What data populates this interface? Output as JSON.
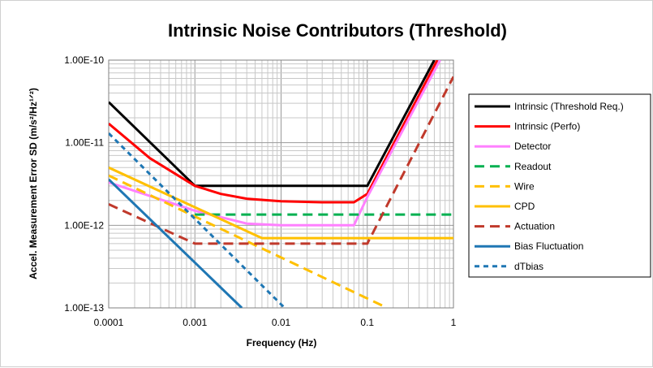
{
  "chart_data": {
    "type": "line",
    "title": "Intrinsic Noise Contributors (Threshold)",
    "xlabel": "Frequency (Hz)",
    "ylabel": "Accel. Measurement Error SD (m/s²/Hz¹ᐟ²)",
    "x_scale": "log",
    "y_scale": "log",
    "xlim": [
      0.0001,
      1
    ],
    "ylim": [
      1e-13,
      1e-10
    ],
    "x_tick_labels": [
      "0.0001",
      "0.001",
      "0.01",
      "0.1",
      "1"
    ],
    "y_tick_labels": [
      "1.00E-10",
      "1.00E-11",
      "1.00E-12",
      "1.00E-13"
    ],
    "grid": true,
    "legend_position": "right",
    "series": [
      {
        "name": "Intrinsic (Threshold Req.)",
        "color": "#000000",
        "dash": "solid",
        "x": [
          0.0001,
          0.001,
          0.01,
          0.1,
          0.6
        ],
        "y": [
          3.1e-11,
          3e-12,
          3e-12,
          3e-12,
          1e-10
        ]
      },
      {
        "name": "Intrinsic (Perfo)",
        "color": "#ff0000",
        "dash": "solid",
        "x": [
          0.0001,
          0.0003,
          0.001,
          0.002,
          0.004,
          0.01,
          0.03,
          0.07,
          0.1,
          0.65
        ],
        "y": [
          1.7e-11,
          6.5e-12,
          3e-12,
          2.4e-12,
          2.1e-12,
          1.95e-12,
          1.9e-12,
          1.9e-12,
          2.4e-12,
          1e-10
        ]
      },
      {
        "name": "Detector",
        "color": "#ff80ff",
        "dash": "solid",
        "x": [
          0.0001,
          0.001,
          0.004,
          0.01,
          0.07,
          0.1,
          0.7
        ],
        "y": [
          3.3e-12,
          1.5e-12,
          1.05e-12,
          1e-12,
          1e-12,
          2.2e-12,
          1e-10
        ]
      },
      {
        "name": "Readout",
        "color": "#00b050",
        "dash": "dashed",
        "x": [
          0.001,
          1
        ],
        "y": [
          1.35e-12,
          1.35e-12
        ]
      },
      {
        "name": "Wire",
        "color": "#ffc000",
        "dash": "dashed",
        "x": [
          0.0001,
          0.17
        ],
        "y": [
          4e-12,
          1e-13
        ]
      },
      {
        "name": "CPD",
        "color": "#ffc000",
        "dash": "solid",
        "x": [
          0.0001,
          0.006,
          1
        ],
        "y": [
          5e-12,
          7e-13,
          7e-13
        ]
      },
      {
        "name": "Actuation",
        "color": "#c0392b",
        "dash": "dashed",
        "x": [
          0.0001,
          0.001,
          0.1,
          1
        ],
        "y": [
          1.8e-12,
          6e-13,
          6e-13,
          6.3e-11
        ]
      },
      {
        "name": "Bias Fluctuation",
        "color": "#1f77b4",
        "dash": "solid",
        "x": [
          0.0001,
          0.0035
        ],
        "y": [
          3.6e-12,
          1e-13
        ]
      },
      {
        "name": "dTbias",
        "color": "#1f77b4",
        "dash": "dotted",
        "x": [
          0.0001,
          0.011
        ],
        "y": [
          1.3e-11,
          1e-13
        ]
      }
    ]
  }
}
